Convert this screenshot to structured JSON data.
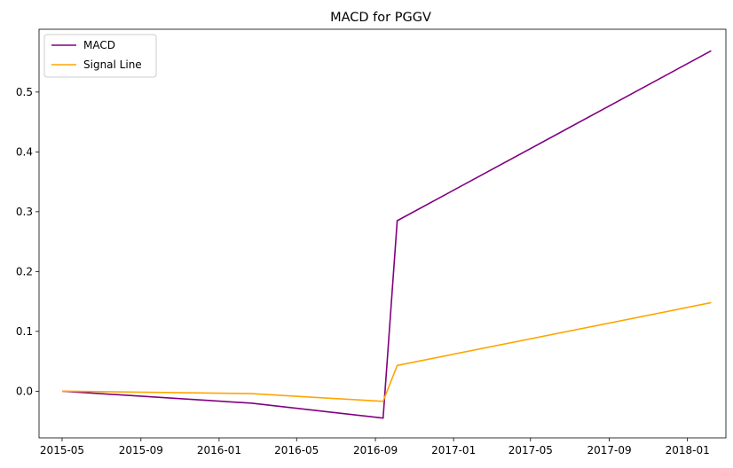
{
  "chart_data": {
    "type": "line",
    "title": "MACD for PGGV",
    "xlabel": "",
    "ylabel": "",
    "x_ticks": [
      "2015-05",
      "2015-09",
      "2016-01",
      "2016-05",
      "2016-09",
      "2017-01",
      "2017-05",
      "2017-09",
      "2018-01"
    ],
    "y_ticks": [
      "0.0",
      "0.1",
      "0.2",
      "0.3",
      "0.4",
      "0.5"
    ],
    "xlim": [
      "2015-03-26",
      "2018-03-02"
    ],
    "ylim": [
      -0.078,
      0.605
    ],
    "grid": false,
    "legend_position": "top-left",
    "series": [
      {
        "name": "MACD",
        "color": "#800080",
        "points": [
          {
            "x": "2015-05-01",
            "y": 0.0
          },
          {
            "x": "2016-02-20",
            "y": -0.02
          },
          {
            "x": "2016-09-13",
            "y": -0.045
          },
          {
            "x": "2016-10-05",
            "y": 0.285
          },
          {
            "x": "2018-02-07",
            "y": 0.569
          }
        ]
      },
      {
        "name": "Signal Line",
        "color": "#FFA500",
        "points": [
          {
            "x": "2015-05-01",
            "y": 0.0
          },
          {
            "x": "2016-02-20",
            "y": -0.004
          },
          {
            "x": "2016-09-13",
            "y": -0.017
          },
          {
            "x": "2016-10-05",
            "y": 0.043
          },
          {
            "x": "2018-02-07",
            "y": 0.148
          }
        ]
      }
    ]
  }
}
